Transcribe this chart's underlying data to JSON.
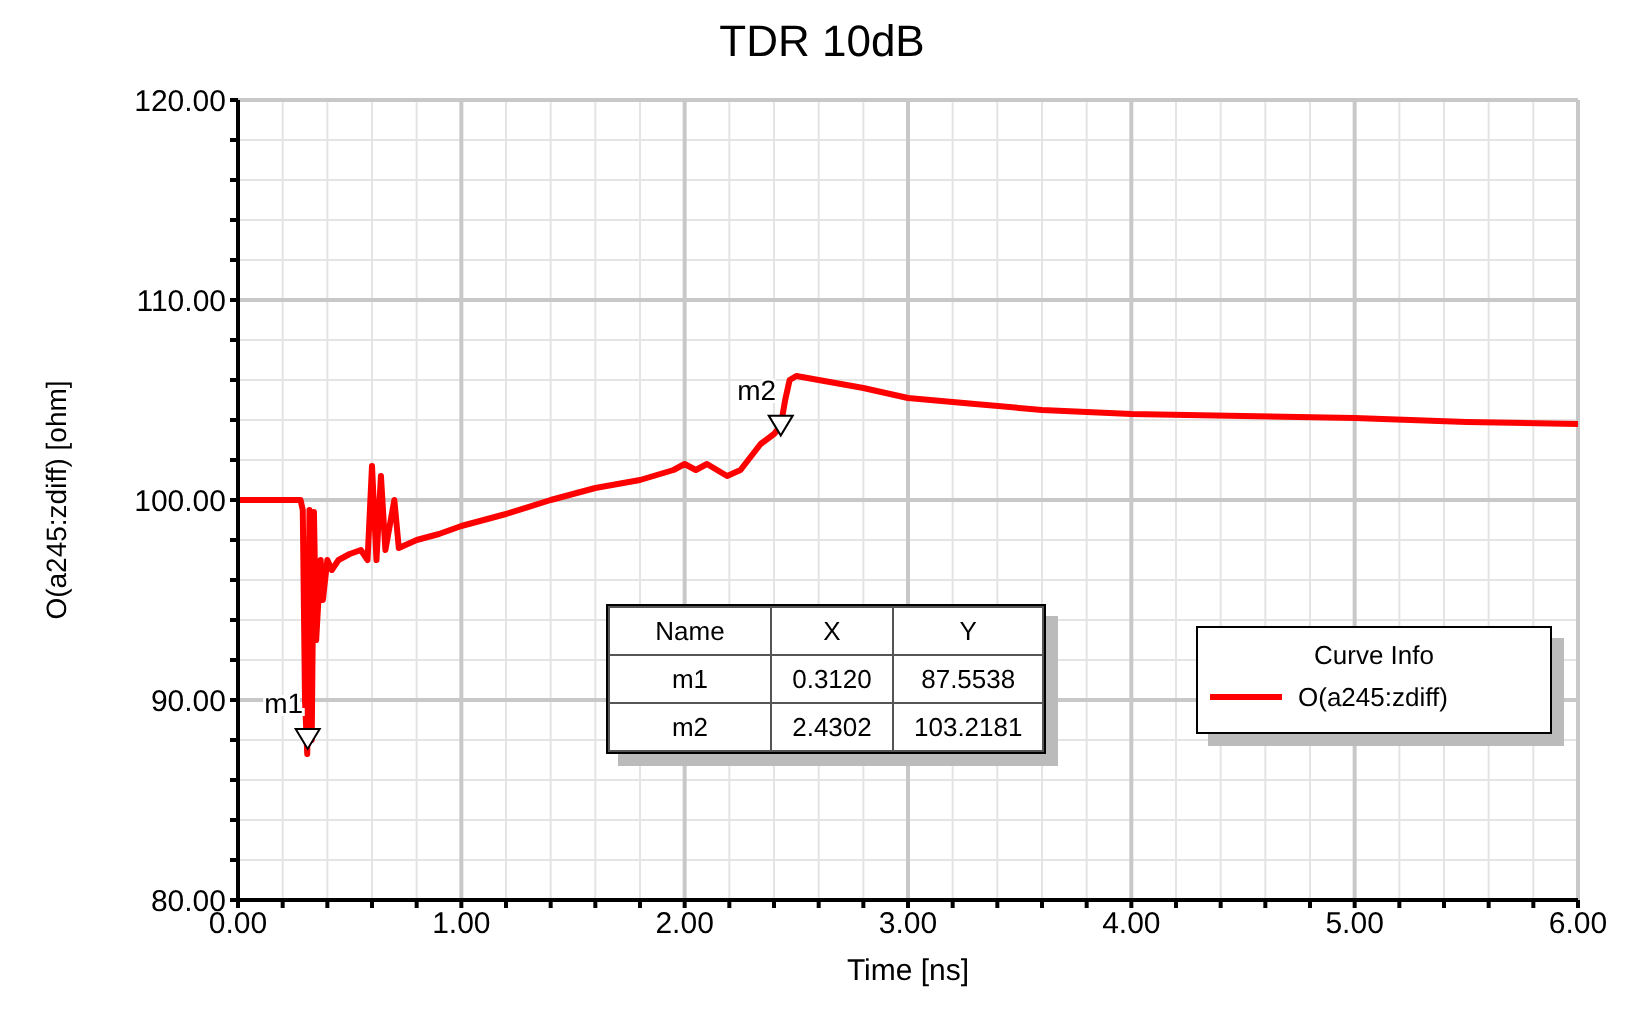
{
  "chart_data": {
    "type": "line",
    "title": "TDR 10dB",
    "xlabel": "Time [ns]",
    "ylabel": "O(a245:zdiff) [ohm]",
    "legend_title": "Curve Info",
    "legend": "right",
    "grid": true,
    "marker": "none",
    "line_style": "solid",
    "x": [
      0,
      0.28,
      0.29,
      0.3,
      0.31,
      0.32,
      0.33,
      0.34,
      0.35,
      0.37,
      0.38,
      0.4,
      0.42,
      0.45,
      0.5,
      0.55,
      0.58,
      0.6,
      0.62,
      0.64,
      0.66,
      0.7,
      0.72,
      0.8,
      0.9,
      1.0,
      1.2,
      1.4,
      1.6,
      1.8,
      1.95,
      2.0,
      2.05,
      2.1,
      2.19,
      2.25,
      2.34,
      2.4,
      2.43,
      2.45,
      2.47,
      2.5,
      2.6,
      2.8,
      3.0,
      3.3,
      3.6,
      4.0,
      4.5,
      5.0,
      5.5,
      6.0
    ],
    "series": [
      {
        "name": "O(a245:zdiff)",
        "color": "#ff0000",
        "values": [
          100,
          100,
          99.5,
          90,
          87.3,
          99.5,
          88,
          99.4,
          93,
          97,
          95,
          97,
          96.5,
          97,
          97.3,
          97.5,
          97,
          101.7,
          97,
          101.2,
          97.5,
          100,
          97.6,
          98,
          98.3,
          98.7,
          99.3,
          100,
          100.6,
          101,
          101.5,
          101.8,
          101.5,
          101.8,
          101.2,
          101.5,
          102.8,
          103.3,
          103.7,
          105,
          106,
          106.2,
          106,
          105.6,
          105.1,
          104.8,
          104.5,
          104.3,
          104.2,
          104.1,
          103.9,
          103.8
        ]
      }
    ],
    "xlim": [
      0,
      6
    ],
    "ylim": [
      80,
      120
    ],
    "xticks": [
      {
        "value": 0,
        "label": "0.00"
      },
      {
        "value": 0.2,
        "label": null
      },
      {
        "value": 0.4,
        "label": null
      },
      {
        "value": 0.6,
        "label": null
      },
      {
        "value": 0.8,
        "label": null
      },
      {
        "value": 1,
        "label": "1.00"
      },
      {
        "value": 1.2,
        "label": null
      },
      {
        "value": 1.4,
        "label": null
      },
      {
        "value": 1.6,
        "label": null
      },
      {
        "value": 1.8,
        "label": null
      },
      {
        "value": 2,
        "label": "2.00"
      },
      {
        "value": 2.2,
        "label": null
      },
      {
        "value": 2.4,
        "label": null
      },
      {
        "value": 2.6,
        "label": null
      },
      {
        "value": 2.8,
        "label": null
      },
      {
        "value": 3,
        "label": "3.00"
      },
      {
        "value": 3.2,
        "label": null
      },
      {
        "value": 3.4,
        "label": null
      },
      {
        "value": 3.6,
        "label": null
      },
      {
        "value": 3.8,
        "label": null
      },
      {
        "value": 4,
        "label": "4.00"
      },
      {
        "value": 4.2,
        "label": null
      },
      {
        "value": 4.4,
        "label": null
      },
      {
        "value": 4.6,
        "label": null
      },
      {
        "value": 4.8,
        "label": null
      },
      {
        "value": 5,
        "label": "5.00"
      },
      {
        "value": 5.2,
        "label": null
      },
      {
        "value": 5.4,
        "label": null
      },
      {
        "value": 5.6,
        "label": null
      },
      {
        "value": 5.8,
        "label": null
      },
      {
        "value": 6,
        "label": "6.00"
      }
    ],
    "yticks": [
      {
        "value": 80,
        "label": "80.00"
      },
      {
        "value": 82,
        "label": null
      },
      {
        "value": 84,
        "label": null
      },
      {
        "value": 86,
        "label": null
      },
      {
        "value": 88,
        "label": null
      },
      {
        "value": 90,
        "label": "90.00"
      },
      {
        "value": 92,
        "label": null
      },
      {
        "value": 94,
        "label": null
      },
      {
        "value": 96,
        "label": null
      },
      {
        "value": 98,
        "label": null
      },
      {
        "value": 100,
        "label": "100.00"
      },
      {
        "value": 102,
        "label": null
      },
      {
        "value": 104,
        "label": null
      },
      {
        "value": 106,
        "label": null
      },
      {
        "value": 108,
        "label": null
      },
      {
        "value": 110,
        "label": "110.00"
      },
      {
        "value": 112,
        "label": null
      },
      {
        "value": 114,
        "label": null
      },
      {
        "value": 116,
        "label": null
      },
      {
        "value": 118,
        "label": null
      },
      {
        "value": 120,
        "label": "120.00"
      }
    ],
    "annotations": [
      "Name",
      "X",
      "Y",
      "m1",
      "0.3120",
      "87.5538",
      "m2",
      "2.4302",
      "103.2181",
      {
        "text": "m1",
        "x": 0.312,
        "y": 87.5538
      },
      {
        "text": "m2",
        "x": 2.4302,
        "y": 103.2181
      }
    ]
  }
}
